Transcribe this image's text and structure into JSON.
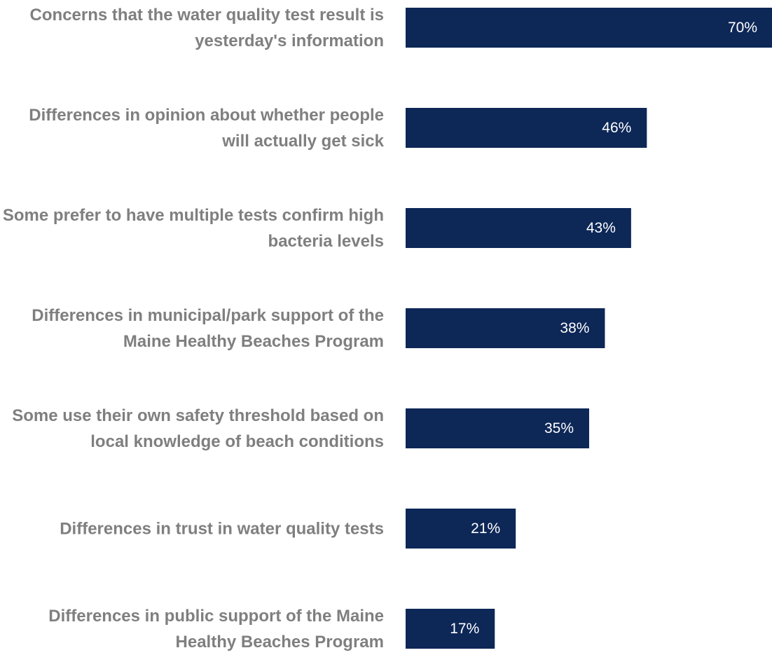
{
  "chart_data": {
    "type": "bar",
    "orientation": "horizontal",
    "categories": [
      "Concerns that the water quality test result is yesterday's information",
      "Differences in opinion about whether people will actually get sick",
      "Some prefer to have multiple tests confirm high bacteria levels",
      "Differences in municipal/park support of the Maine Healthy Beaches Program",
      "Some use their own safety threshold based on local knowledge of beach conditions",
      "Differences in trust in water quality tests",
      "Differences in public support of the Maine Healthy Beaches Program"
    ],
    "values": [
      70,
      46,
      43,
      38,
      35,
      21,
      17
    ],
    "value_labels": [
      "70%",
      "46%",
      "43%",
      "38%",
      "35%",
      "21%",
      "17%"
    ],
    "unit": "%",
    "xlim": [
      0,
      70
    ],
    "grid": false,
    "legend": "none",
    "bar_color": "#0d2757",
    "label_color": "#7f7f7f",
    "value_label_color": "#ffffff"
  }
}
